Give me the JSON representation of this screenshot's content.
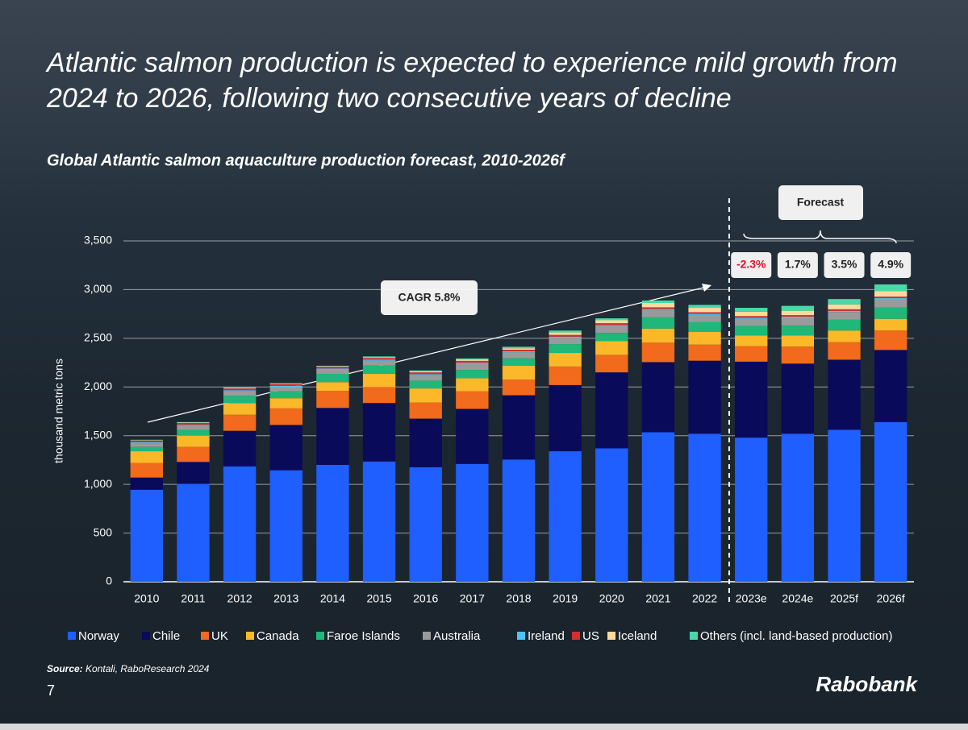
{
  "title": "Atlantic salmon production is expected to experience mild growth from 2024 to 2026, following two consecutive years of decline",
  "chart_data": {
    "type": "stacked_bar",
    "subtitle": "Global Atlantic salmon aquaculture production forecast, 2010-2026f",
    "y_label": "thousand metric tons",
    "categories": [
      "2010",
      "2011",
      "2012",
      "2013",
      "2014",
      "2015",
      "2016",
      "2017",
      "2018",
      "2019",
      "2020",
      "2021",
      "2022",
      "2023e",
      "2024e",
      "2025f",
      "2026f"
    ],
    "series": [
      {
        "name": "Norway",
        "color": "#1f5fff",
        "values": [
          945,
          1005,
          1185,
          1145,
          1200,
          1235,
          1175,
          1210,
          1255,
          1340,
          1370,
          1535,
          1520,
          1480,
          1520,
          1560,
          1640
        ]
      },
      {
        "name": "Chile",
        "color": "#0a0a5a",
        "values": [
          125,
          225,
          365,
          465,
          585,
          600,
          500,
          565,
          660,
          680,
          780,
          720,
          750,
          780,
          720,
          720,
          740
        ]
      },
      {
        "name": "UK",
        "color": "#f26a1b",
        "values": [
          150,
          155,
          165,
          170,
          175,
          165,
          165,
          180,
          160,
          190,
          180,
          200,
          165,
          160,
          175,
          180,
          200
        ]
      },
      {
        "name": "Canada",
        "color": "#fbb829",
        "values": [
          120,
          115,
          120,
          105,
          90,
          135,
          145,
          135,
          145,
          140,
          140,
          145,
          130,
          110,
          115,
          120,
          120
        ]
      },
      {
        "name": "Faroe Islands",
        "color": "#1fb87a",
        "values": [
          45,
          60,
          75,
          70,
          85,
          85,
          80,
          85,
          75,
          90,
          85,
          115,
          100,
          95,
          100,
          110,
          115
        ]
      },
      {
        "name": "Australia",
        "color": "#9a9a9a",
        "values": [
          35,
          40,
          45,
          45,
          45,
          50,
          55,
          60,
          60,
          65,
          70,
          75,
          75,
          75,
          80,
          80,
          85
        ]
      },
      {
        "name": "Ireland",
        "color": "#4fc3f7",
        "values": [
          12,
          12,
          12,
          12,
          10,
          12,
          12,
          15,
          12,
          12,
          12,
          12,
          12,
          12,
          12,
          12,
          12
        ]
      },
      {
        "name": "US",
        "color": "#d32f2f",
        "values": [
          18,
          18,
          18,
          18,
          18,
          16,
          18,
          18,
          16,
          18,
          18,
          16,
          16,
          16,
          16,
          16,
          16
        ]
      },
      {
        "name": "Iceland",
        "color": "#ffd99a",
        "values": [
          3,
          5,
          5,
          5,
          5,
          6,
          10,
          15,
          15,
          25,
          30,
          45,
          45,
          45,
          45,
          50,
          55
        ]
      },
      {
        "name": "Others (incl. land-based production)",
        "color": "#49d9a8",
        "values": [
          5,
          5,
          5,
          5,
          5,
          10,
          10,
          10,
          15,
          20,
          20,
          25,
          30,
          40,
          50,
          55,
          70
        ]
      }
    ],
    "ylim": [
      0,
      3500
    ],
    "yticks": [
      0,
      500,
      {
        "value": 1000,
        "label": "1,000"
      },
      {
        "value": 1500,
        "label": "1,500"
      },
      {
        "value": 2000,
        "label": "2,000"
      },
      {
        "value": 2500,
        "label": "2,500"
      },
      {
        "value": 3000,
        "label": "3,000"
      },
      {
        "value": 3500,
        "label": "3,500"
      }
    ],
    "grid": true,
    "cagr_label": "CAGR 5.8%",
    "forecast_label": "Forecast",
    "growth_labels": [
      "-2.3%",
      "1.7%",
      "3.5%",
      "4.9%"
    ]
  },
  "source_prefix": "Source:",
  "source": "Kontali, RaboResearch 2024",
  "page_number": "7",
  "logo": "Rabobank"
}
